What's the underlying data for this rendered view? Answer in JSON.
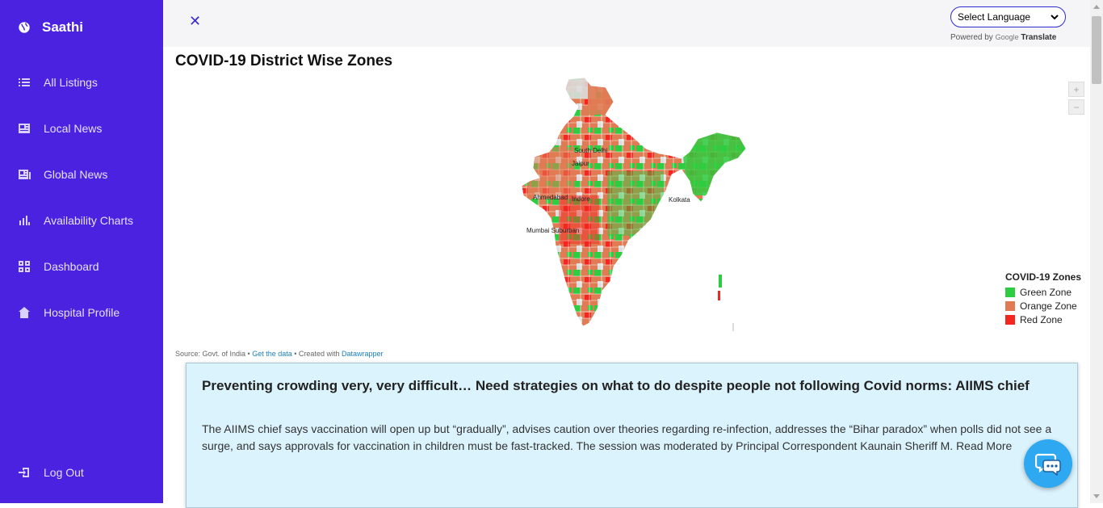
{
  "sidebar": {
    "brand": "Saathi",
    "items": [
      {
        "label": "All Listings",
        "icon": "list-icon"
      },
      {
        "label": "Local News",
        "icon": "newspaper-icon"
      },
      {
        "label": "Global News",
        "icon": "global-news-icon"
      },
      {
        "label": "Availability Charts",
        "icon": "bar-chart-icon"
      },
      {
        "label": "Dashboard",
        "icon": "grid-icon"
      },
      {
        "label": "Hospital Profile",
        "icon": "home-icon"
      }
    ],
    "logout": "Log Out"
  },
  "topbar": {
    "close": "✕",
    "language_select": "Select Language",
    "powered_by": "Powered by",
    "google": "Google",
    "translate": "Translate"
  },
  "map": {
    "title": "COVID-19 District Wise Zones",
    "cities": [
      "South Delhi",
      "Jaipur",
      "Ahmedabad",
      "Indore",
      "Kolkata",
      "Mumbai Suburban"
    ],
    "zoom_in": "+",
    "zoom_out": "−",
    "legend": {
      "title": "COVID-19 Zones",
      "items": [
        {
          "label": "Green Zone",
          "color": "#2ecc40"
        },
        {
          "label": "Orange Zone",
          "color": "#e07b54"
        },
        {
          "label": "Red Zone",
          "color": "#f5261f"
        }
      ]
    },
    "source": {
      "prefix": "Source: Govt. of India •",
      "get_data": "Get the data",
      "created": "• Created with",
      "datawrapper": "Datawrapper"
    }
  },
  "news": {
    "title": "Preventing crowding very, very difficult… Need strategies on what to do despite people not following Covid norms: AIIMS chief",
    "body": "The AIIMS chief says vaccination will open up but “gradually”, advises caution over theories regarding re-infection, addresses the “Bihar paradox” when polls did not see a surge, and says approvals for vaccination in children must be fast-tracked. The session was moderated by Principal Correspondent Kaunain Sheriff M.  Read More"
  },
  "colors": {
    "sidebar": "#4a22e0",
    "accent": "#2ea8f0",
    "card": "#dbf3fd"
  }
}
